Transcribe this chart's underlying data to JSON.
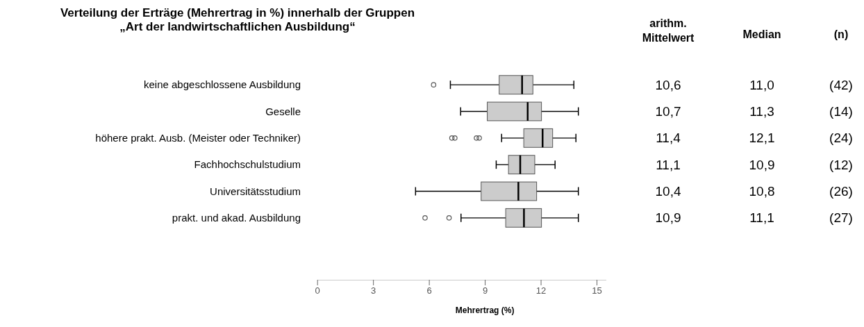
{
  "chart_data": {
    "type": "box",
    "orientation": "horizontal",
    "title": "Verteilung der Erträge (Mehrertrag in %) innerhalb der Gruppen\n„Art der landwirtschaftlichen Ausbildung“",
    "xlabel": "Mehrertrag (%)",
    "categories": [
      "keine abgeschlossene Ausbildung",
      "Geselle",
      "höhere prakt. Ausb. (Meister oder Techniker)",
      "Fachhochschulstudium",
      "Universitätsstudium",
      "prakt. und akad. Ausbildung"
    ],
    "boxes": [
      {
        "low": 7.15,
        "q1": 9.77,
        "median": 11.0,
        "q3": 11.58,
        "high": 13.78,
        "outliers": [
          6.25
        ]
      },
      {
        "low": 7.7,
        "q1": 9.13,
        "median": 11.3,
        "q3": 12.04,
        "high": 14.02
      },
      {
        "low": 9.9,
        "q1": 11.09,
        "median": 12.1,
        "q3": 12.64,
        "high": 13.89,
        "outliers": [
          7.23,
          7.39,
          8.55,
          8.7
        ]
      },
      {
        "low": 9.61,
        "q1": 10.27,
        "median": 10.9,
        "q3": 11.68,
        "high": 12.77
      },
      {
        "low": 5.28,
        "q1": 8.8,
        "median": 10.8,
        "q3": 11.78,
        "high": 14.02
      },
      {
        "low": 7.72,
        "q1": 10.12,
        "median": 11.1,
        "q3": 12.04,
        "high": 14.02,
        "outliers": [
          5.79,
          7.08
        ]
      }
    ],
    "color": "#cccccc",
    "xlim": [
      0,
      15.5
    ],
    "xticks": [
      0,
      3,
      6,
      9,
      12,
      15
    ],
    "grid": false,
    "annotations": [
      "arithm.\nMittelwert",
      "Median",
      "(n)",
      "10,6",
      "11,0",
      "(42)",
      "10,7",
      "11,3",
      "(14)",
      "11,4",
      "12,1",
      "(24)",
      "11,1",
      "10,9",
      "(12)",
      "10,4",
      "10,8",
      "(26)",
      "10,9",
      "11,1",
      "(27)"
    ]
  }
}
